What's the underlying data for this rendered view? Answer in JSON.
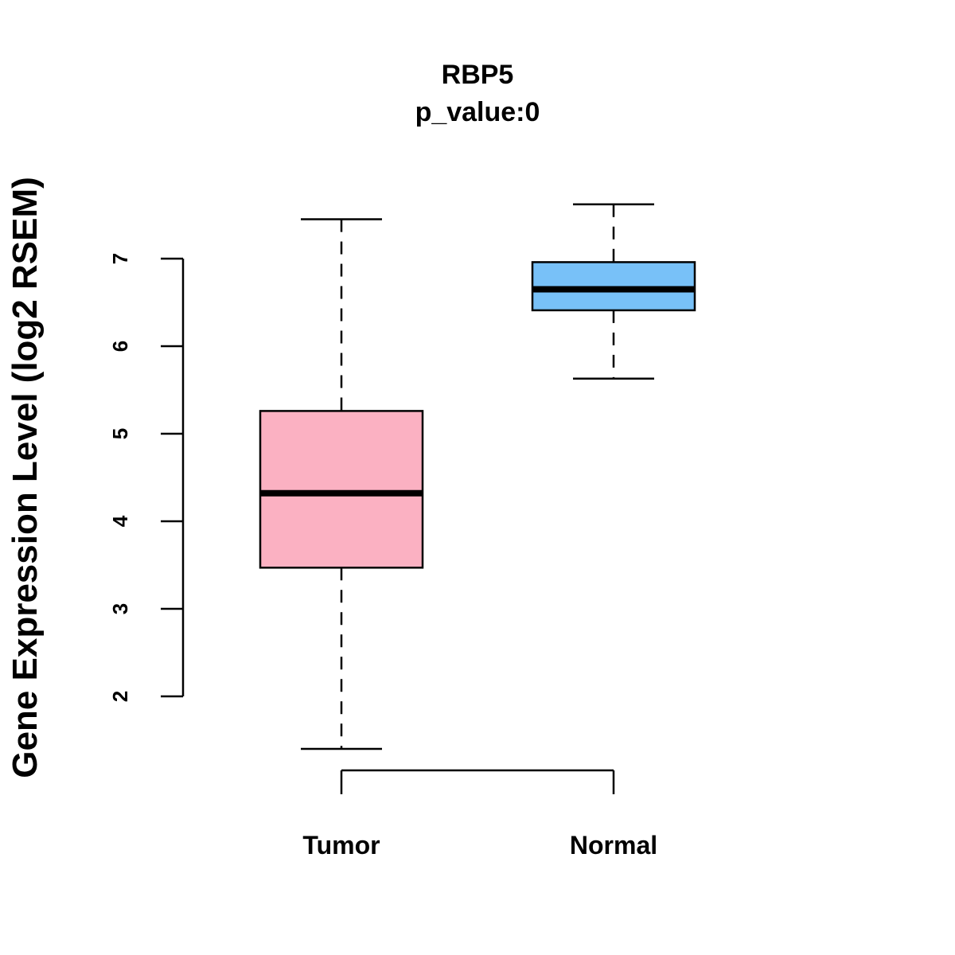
{
  "chart_data": {
    "type": "box",
    "title": "RBP5",
    "subtitle": "p_value:0",
    "xlabel": "",
    "ylabel": "Gene Expression Level (log2 RSEM)",
    "yticks": [
      2,
      3,
      4,
      5,
      6,
      7
    ],
    "categories": [
      "Tumor",
      "Normal"
    ],
    "series": [
      {
        "name": "Tumor",
        "color": "#FBB1C2",
        "whisker_low": 1.4,
        "q1": 3.47,
        "median": 4.32,
        "q3": 5.26,
        "whisker_high": 7.45
      },
      {
        "name": "Normal",
        "color": "#78C1F8",
        "whisker_low": 5.63,
        "q1": 6.41,
        "median": 6.65,
        "q3": 6.96,
        "whisker_high": 7.62
      }
    ]
  }
}
